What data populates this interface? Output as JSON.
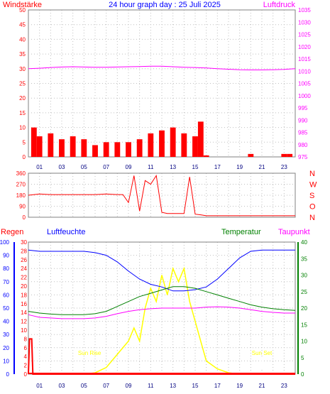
{
  "title": "24 hour graph day : 25 Juli 2025",
  "panel1": {
    "left_label": "Windstärke",
    "right_label": "Luftdruck",
    "left_ticks": [
      "0",
      "5",
      "10",
      "15",
      "20",
      "25",
      "30",
      "35",
      "40",
      "45",
      "50"
    ],
    "right_ticks": [
      "975",
      "980",
      "985",
      "990",
      "995",
      "1000",
      "1005",
      "1010",
      "1015",
      "1020",
      "1025",
      "1030",
      "1035"
    ]
  },
  "panel2": {
    "left_ticks": [
      "0",
      "90",
      "180",
      "270",
      "360"
    ],
    "right_ticks": [
      "N",
      "O",
      "S",
      "W",
      "N"
    ]
  },
  "panel3": {
    "left_label": "Regen",
    "left2_label": "Luftfeuchte",
    "right_label": "Temperatur",
    "right2_label": "Taupunkt",
    "humidity_ticks": [
      "0",
      "10",
      "20",
      "30",
      "40",
      "50",
      "60",
      "70",
      "80",
      "90",
      "100"
    ],
    "rain_ticks": [
      "0",
      "2",
      "4",
      "6",
      "8",
      "10",
      "12",
      "14",
      "16",
      "18",
      "20",
      "22",
      "24",
      "26",
      "28",
      "30"
    ],
    "temp_ticks": [
      "0",
      "5",
      "10",
      "15",
      "20",
      "25",
      "30",
      "35",
      "40"
    ],
    "sunrise_label": "Sun Rise",
    "sunset_label": "Sun Set"
  },
  "x_ticks": [
    "01",
    "03",
    "05",
    "07",
    "09",
    "11",
    "13",
    "15",
    "17",
    "19",
    "21",
    "23"
  ],
  "colors": {
    "wind": "#ff0000",
    "gust": "#0000ff",
    "wind_avg": "#008000",
    "pressure": "#ff00ff",
    "direction": "#ff0000",
    "humidity": "#0000ff",
    "temperature": "#008000",
    "dewpoint": "#ff00ff",
    "solar": "#ffff00",
    "uv": "#c0e0ff",
    "rain": "#ff0000",
    "grid": "#c0c0c0"
  },
  "chart_data": [
    {
      "type": "bar",
      "title": "24 hour graph day : 25 Juli 2025",
      "ylabel": "Windstärke",
      "y2label": "Luftdruck",
      "xlim": [
        0,
        24
      ],
      "ylim": [
        0,
        50
      ],
      "y2lim": [
        975,
        1035
      ],
      "series": [
        {
          "name": "Windstärke",
          "x": [
            0.5,
            1,
            2,
            3,
            4,
            5,
            6,
            7,
            8,
            9,
            10,
            11,
            12,
            13,
            14,
            15,
            15.5,
            16,
            16.5,
            17,
            18,
            19,
            20,
            21,
            22,
            23,
            23.5,
            24
          ],
          "values": [
            10,
            7,
            8,
            6,
            7,
            6,
            4,
            5,
            5,
            5,
            6,
            8,
            9,
            10,
            8,
            7,
            12,
            0.5,
            0,
            0,
            0,
            0,
            1,
            0,
            0,
            1,
            1,
            0
          ]
        },
        {
          "name": "Luftdruck",
          "x": [
            0,
            1,
            2,
            3,
            4,
            5,
            6,
            7,
            8,
            9,
            10,
            11,
            12,
            13,
            14,
            15,
            16,
            17,
            18,
            19,
            20,
            21,
            22,
            23,
            24
          ],
          "values": [
            1011,
            1011.2,
            1011.5,
            1011.7,
            1011.8,
            1011.7,
            1011.6,
            1011.6,
            1011.7,
            1011.8,
            1011.9,
            1012,
            1012,
            1011.8,
            1011.6,
            1011.5,
            1011.3,
            1011,
            1010.8,
            1010.6,
            1010.5,
            1010.5,
            1010.6,
            1010.7,
            1011
          ]
        }
      ]
    },
    {
      "type": "line",
      "ylim": [
        0,
        360
      ],
      "series": [
        {
          "name": "Windrichtung",
          "x": [
            0,
            1,
            2,
            3,
            4,
            5,
            6,
            7,
            8,
            8.5,
            9,
            9.5,
            10,
            10.5,
            11,
            11.5,
            12,
            12.5,
            13,
            13.5,
            14,
            14.5,
            15,
            15.5,
            16,
            17,
            18,
            19,
            20,
            21,
            22,
            23,
            24
          ],
          "values": [
            180,
            190,
            185,
            185,
            185,
            185,
            185,
            190,
            185,
            185,
            120,
            340,
            50,
            300,
            270,
            340,
            40,
            30,
            30,
            30,
            30,
            330,
            25,
            20,
            12,
            12,
            12,
            12,
            12,
            12,
            12,
            12,
            12
          ]
        }
      ]
    },
    {
      "type": "line",
      "ylim": [
        0,
        100
      ],
      "series": [
        {
          "name": "Luftfeuchte",
          "x": [
            0,
            1,
            2,
            3,
            4,
            5,
            6,
            7,
            8,
            9,
            10,
            11,
            12,
            13,
            14,
            15,
            16,
            17,
            18,
            19,
            20,
            21,
            22,
            23,
            24
          ],
          "values": [
            94,
            93,
            93,
            93,
            93,
            93,
            92,
            90,
            85,
            78,
            72,
            68,
            66,
            63,
            63,
            64,
            66,
            72,
            80,
            88,
            93,
            94,
            94,
            94,
            94
          ]
        },
        {
          "name": "Temperatur",
          "x": [
            0,
            1,
            2,
            3,
            4,
            5,
            6,
            7,
            8,
            9,
            10,
            11,
            12,
            13,
            14,
            15,
            16,
            17,
            18,
            19,
            20,
            21,
            22,
            23,
            24
          ],
          "values": [
            19,
            18.5,
            18.2,
            18,
            18,
            18,
            18.3,
            19,
            20.5,
            22,
            23.5,
            24.5,
            25.5,
            26.5,
            26.5,
            26,
            25,
            24,
            23,
            22,
            21,
            20.3,
            19.8,
            19.5,
            19.3
          ]
        },
        {
          "name": "Taupunkt",
          "x": [
            0,
            1,
            2,
            3,
            4,
            5,
            6,
            7,
            8,
            9,
            10,
            11,
            12,
            13,
            14,
            15,
            16,
            17,
            18,
            19,
            20,
            21,
            22,
            23,
            24
          ],
          "values": [
            18,
            17.2,
            17,
            16.8,
            16.8,
            16.8,
            17,
            17.5,
            18.3,
            19,
            19.5,
            19.8,
            20,
            20,
            20,
            20,
            20.3,
            20.4,
            20.3,
            20,
            19.5,
            19,
            18.7,
            18.5,
            18.5
          ]
        },
        {
          "name": "Solar",
          "x": [
            5,
            6,
            7,
            8,
            9,
            9.5,
            10,
            10.5,
            11,
            11.5,
            12,
            12.5,
            13,
            13.5,
            14,
            14.5,
            15,
            15.5,
            16,
            17,
            18,
            19
          ],
          "values": [
            0,
            1,
            5,
            15,
            25,
            35,
            25,
            50,
            65,
            55,
            75,
            60,
            80,
            70,
            80,
            55,
            40,
            25,
            10,
            4,
            1,
            0
          ]
        },
        {
          "name": "Regen",
          "x": [
            0,
            0.1,
            0.3,
            0.4,
            24
          ],
          "values": [
            0,
            8,
            8,
            0,
            0
          ]
        }
      ],
      "sunrise_hour": 5.5,
      "sunset_hour": 21
    }
  ]
}
